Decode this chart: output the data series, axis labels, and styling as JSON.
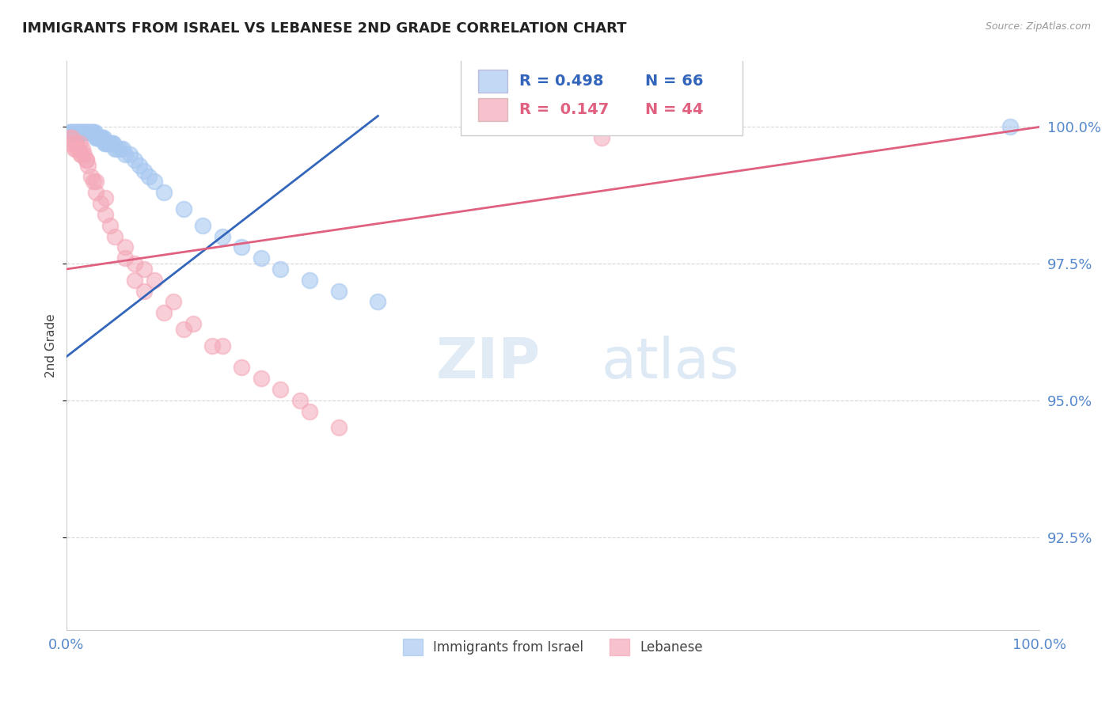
{
  "title": "IMMIGRANTS FROM ISRAEL VS LEBANESE 2ND GRADE CORRELATION CHART",
  "source": "Source: ZipAtlas.com",
  "ylabel": "2nd Grade",
  "ylabel_right_labels": [
    "100.0%",
    "97.5%",
    "95.0%",
    "92.5%"
  ],
  "ylabel_right_values": [
    1.0,
    0.975,
    0.95,
    0.925
  ],
  "xmin": 0.0,
  "xmax": 1.0,
  "ymin": 0.908,
  "ymax": 1.012,
  "legend_blue_r": "R = 0.498",
  "legend_blue_n": "N = 66",
  "legend_pink_r": "R =  0.147",
  "legend_pink_n": "N = 44",
  "legend_label_blue": "Immigrants from Israel",
  "legend_label_pink": "Lebanese",
  "blue_color": "#A8C8F0",
  "pink_color": "#F4A8B8",
  "trendline_blue_color": "#3366BB",
  "trendline_pink_color": "#E06080",
  "grid_color": "#CCCCCC",
  "title_color": "#222222",
  "axis_label_color": "#5588CC",
  "blue_r_color": "#3366BB",
  "pink_r_color": "#E06080",
  "blue_x": [
    0.003,
    0.004,
    0.005,
    0.006,
    0.007,
    0.008,
    0.009,
    0.01,
    0.011,
    0.012,
    0.013,
    0.014,
    0.015,
    0.016,
    0.017,
    0.018,
    0.019,
    0.02,
    0.021,
    0.022,
    0.023,
    0.024,
    0.025,
    0.026,
    0.027,
    0.028,
    0.029,
    0.03,
    0.031,
    0.032,
    0.033,
    0.034,
    0.035,
    0.036,
    0.037,
    0.038,
    0.039,
    0.04,
    0.042,
    0.043,
    0.044,
    0.045,
    0.047,
    0.048,
    0.05,
    0.052,
    0.055,
    0.058,
    0.06,
    0.065,
    0.07,
    0.075,
    0.08,
    0.085,
    0.09,
    0.1,
    0.12,
    0.14,
    0.16,
    0.18,
    0.2,
    0.22,
    0.25,
    0.28,
    0.32,
    0.97
  ],
  "blue_y": [
    0.999,
    0.999,
    0.999,
    0.999,
    0.999,
    0.999,
    0.999,
    0.999,
    0.999,
    0.999,
    0.999,
    0.999,
    0.999,
    0.999,
    0.999,
    0.999,
    0.999,
    0.999,
    0.999,
    0.999,
    0.999,
    0.999,
    0.999,
    0.999,
    0.999,
    0.999,
    0.999,
    0.998,
    0.998,
    0.998,
    0.998,
    0.998,
    0.998,
    0.998,
    0.998,
    0.998,
    0.997,
    0.997,
    0.997,
    0.997,
    0.997,
    0.997,
    0.997,
    0.997,
    0.996,
    0.996,
    0.996,
    0.996,
    0.995,
    0.995,
    0.994,
    0.993,
    0.992,
    0.991,
    0.99,
    0.988,
    0.985,
    0.982,
    0.98,
    0.978,
    0.976,
    0.974,
    0.972,
    0.97,
    0.968,
    1.0
  ],
  "pink_x": [
    0.003,
    0.005,
    0.006,
    0.008,
    0.01,
    0.012,
    0.014,
    0.015,
    0.016,
    0.018,
    0.02,
    0.022,
    0.025,
    0.028,
    0.03,
    0.035,
    0.04,
    0.045,
    0.05,
    0.06,
    0.07,
    0.08,
    0.1,
    0.12,
    0.15,
    0.18,
    0.22,
    0.07,
    0.09,
    0.11,
    0.13,
    0.16,
    0.2,
    0.24,
    0.06,
    0.08,
    0.25,
    0.03,
    0.04,
    0.02,
    0.015,
    0.01,
    0.55,
    0.28
  ],
  "pink_y": [
    0.998,
    0.997,
    0.998,
    0.996,
    0.997,
    0.996,
    0.997,
    0.995,
    0.996,
    0.995,
    0.994,
    0.993,
    0.991,
    0.99,
    0.988,
    0.986,
    0.984,
    0.982,
    0.98,
    0.976,
    0.972,
    0.97,
    0.966,
    0.963,
    0.96,
    0.956,
    0.952,
    0.975,
    0.972,
    0.968,
    0.964,
    0.96,
    0.954,
    0.95,
    0.978,
    0.974,
    0.948,
    0.99,
    0.987,
    0.994,
    0.995,
    0.996,
    0.998,
    0.945
  ],
  "watermark_zip": "ZIP",
  "watermark_atlas": "atlas"
}
